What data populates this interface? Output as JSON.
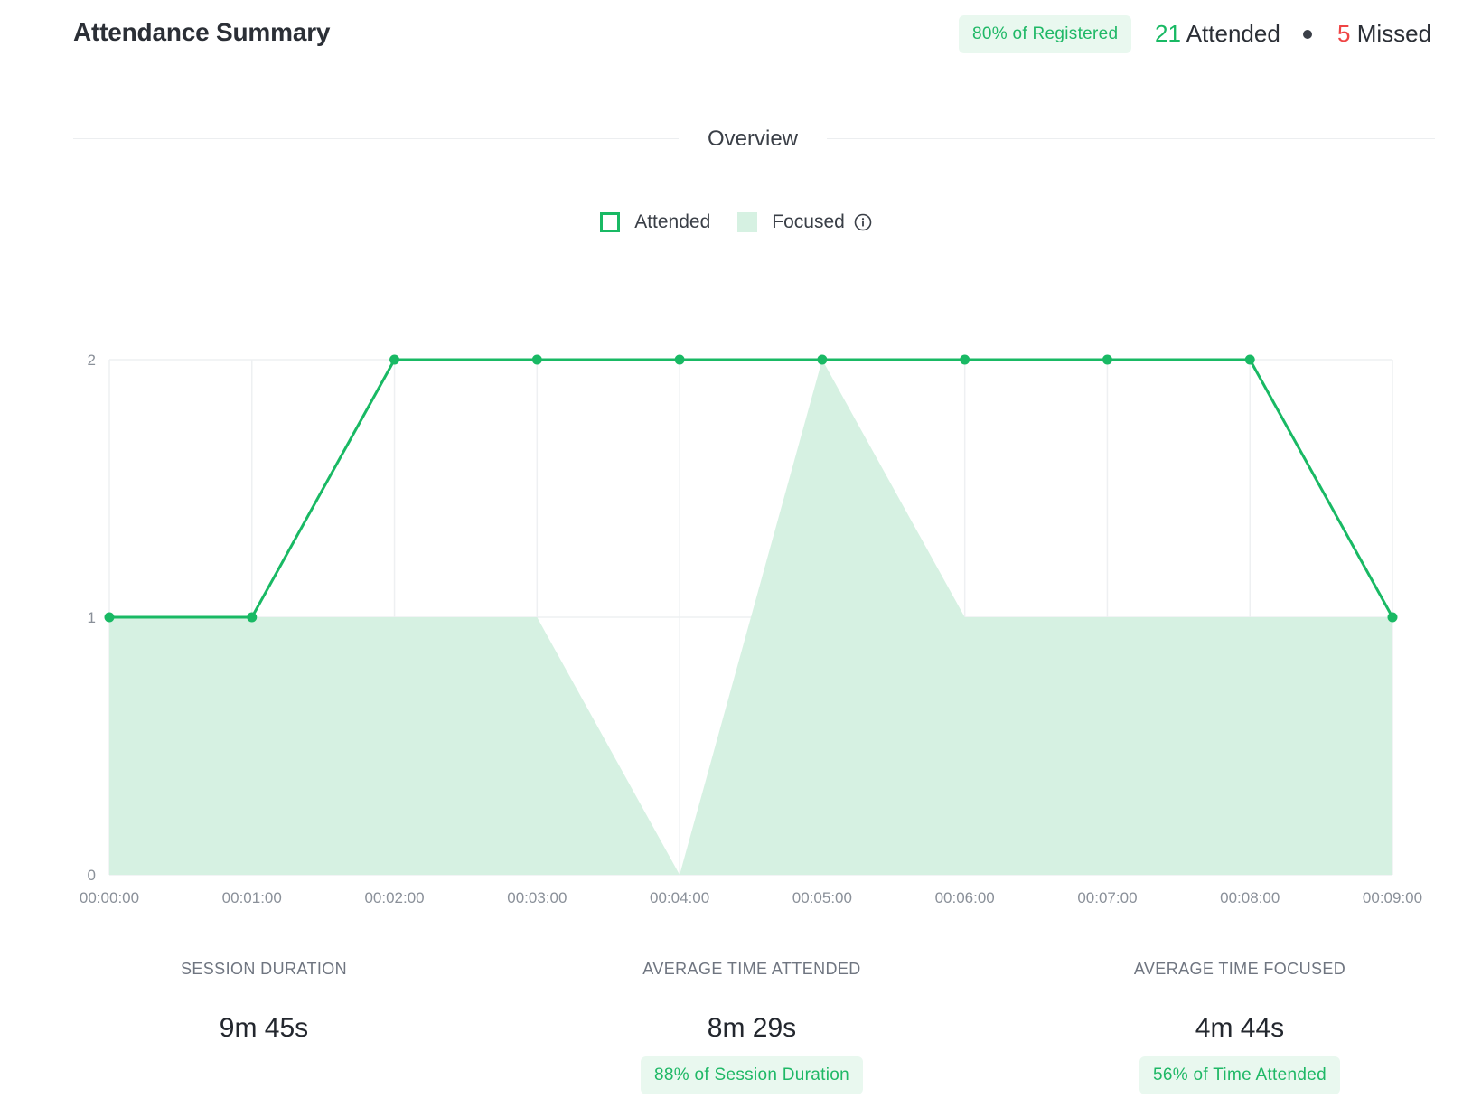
{
  "header": {
    "title": "Attendance Summary",
    "registered_badge": "80% of Registered",
    "attended_count": "21",
    "attended_label": "Attended",
    "missed_count": "5",
    "missed_label": "Missed"
  },
  "section": {
    "title": "Overview"
  },
  "legend": {
    "attended_label": "Attended",
    "focused_label": "Focused",
    "info_icon": "info-icon"
  },
  "colors": {
    "accent": "#19b964",
    "focused_fill": "#d6f1e2",
    "missed": "#ef4444",
    "badge_bg": "#e9f8ef"
  },
  "chart_data": {
    "type": "line",
    "title": "",
    "xlabel": "",
    "ylabel": "",
    "x": [
      "00:00:00",
      "00:01:00",
      "00:02:00",
      "00:03:00",
      "00:04:00",
      "00:05:00",
      "00:06:00",
      "00:07:00",
      "00:08:00",
      "00:09:00"
    ],
    "series": [
      {
        "name": "Attended",
        "kind": "line",
        "values": [
          1,
          1,
          2,
          2,
          2,
          2,
          2,
          2,
          2,
          1
        ]
      },
      {
        "name": "Focused",
        "kind": "area",
        "values": [
          1,
          1,
          1,
          1,
          0,
          2,
          1,
          1,
          1,
          1
        ]
      }
    ],
    "ylim": [
      0,
      2
    ],
    "yticks": [
      0,
      1,
      2
    ],
    "grid": true,
    "legend_position": "top-center"
  },
  "kpis": [
    {
      "label": "SESSION DURATION",
      "value": "9m 45s",
      "badge": ""
    },
    {
      "label": "AVERAGE TIME ATTENDED",
      "value": "8m 29s",
      "badge": "88% of Session Duration"
    },
    {
      "label": "AVERAGE TIME FOCUSED",
      "value": "4m 44s",
      "badge": "56% of Time Attended"
    }
  ]
}
